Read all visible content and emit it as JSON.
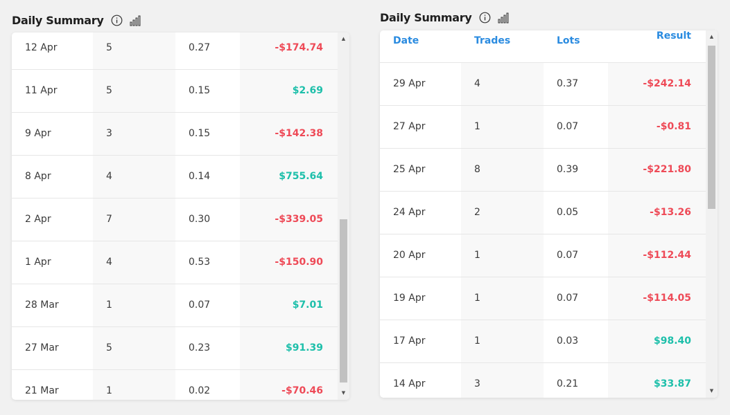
{
  "left_panel": {
    "title": "Daily Summary",
    "rows": [
      {
        "date": "12 Apr",
        "trades": "5",
        "lots": "0.27",
        "result": "-$174.74",
        "sign": "neg"
      },
      {
        "date": "11 Apr",
        "trades": "5",
        "lots": "0.15",
        "result": "$2.69",
        "sign": "pos"
      },
      {
        "date": "9 Apr",
        "trades": "3",
        "lots": "0.15",
        "result": "-$142.38",
        "sign": "neg"
      },
      {
        "date": "8 Apr",
        "trades": "4",
        "lots": "0.14",
        "result": "$755.64",
        "sign": "pos"
      },
      {
        "date": "2 Apr",
        "trades": "7",
        "lots": "0.30",
        "result": "-$339.05",
        "sign": "neg"
      },
      {
        "date": "1 Apr",
        "trades": "4",
        "lots": "0.53",
        "result": "-$150.90",
        "sign": "neg"
      },
      {
        "date": "28 Mar",
        "trades": "1",
        "lots": "0.07",
        "result": "$7.01",
        "sign": "pos"
      },
      {
        "date": "27 Mar",
        "trades": "5",
        "lots": "0.23",
        "result": "$91.39",
        "sign": "pos"
      },
      {
        "date": "21 Mar",
        "trades": "1",
        "lots": "0.02",
        "result": "-$70.46",
        "sign": "neg"
      }
    ]
  },
  "right_panel": {
    "title": "Daily Summary",
    "headers": {
      "date": "Date",
      "trades": "Trades",
      "lots": "Lots",
      "result": "Result"
    },
    "rows": [
      {
        "date": "29 Apr",
        "trades": "4",
        "lots": "0.37",
        "result": "-$242.14",
        "sign": "neg"
      },
      {
        "date": "27 Apr",
        "trades": "1",
        "lots": "0.07",
        "result": "-$0.81",
        "sign": "neg"
      },
      {
        "date": "25 Apr",
        "trades": "8",
        "lots": "0.39",
        "result": "-$221.80",
        "sign": "neg"
      },
      {
        "date": "24 Apr",
        "trades": "2",
        "lots": "0.05",
        "result": "-$13.26",
        "sign": "neg"
      },
      {
        "date": "20 Apr",
        "trades": "1",
        "lots": "0.07",
        "result": "-$112.44",
        "sign": "neg"
      },
      {
        "date": "19 Apr",
        "trades": "1",
        "lots": "0.07",
        "result": "-$114.05",
        "sign": "neg"
      },
      {
        "date": "17 Apr",
        "trades": "1",
        "lots": "0.03",
        "result": "$98.40",
        "sign": "pos"
      },
      {
        "date": "14 Apr",
        "trades": "3",
        "lots": "0.21",
        "result": "$33.87",
        "sign": "pos"
      }
    ]
  },
  "icons": {
    "info": "info-icon",
    "chart": "bar-chart-icon"
  },
  "colors": {
    "negative": "#ee4a57",
    "positive": "#1dbfaa",
    "header": "#2a8be0"
  }
}
